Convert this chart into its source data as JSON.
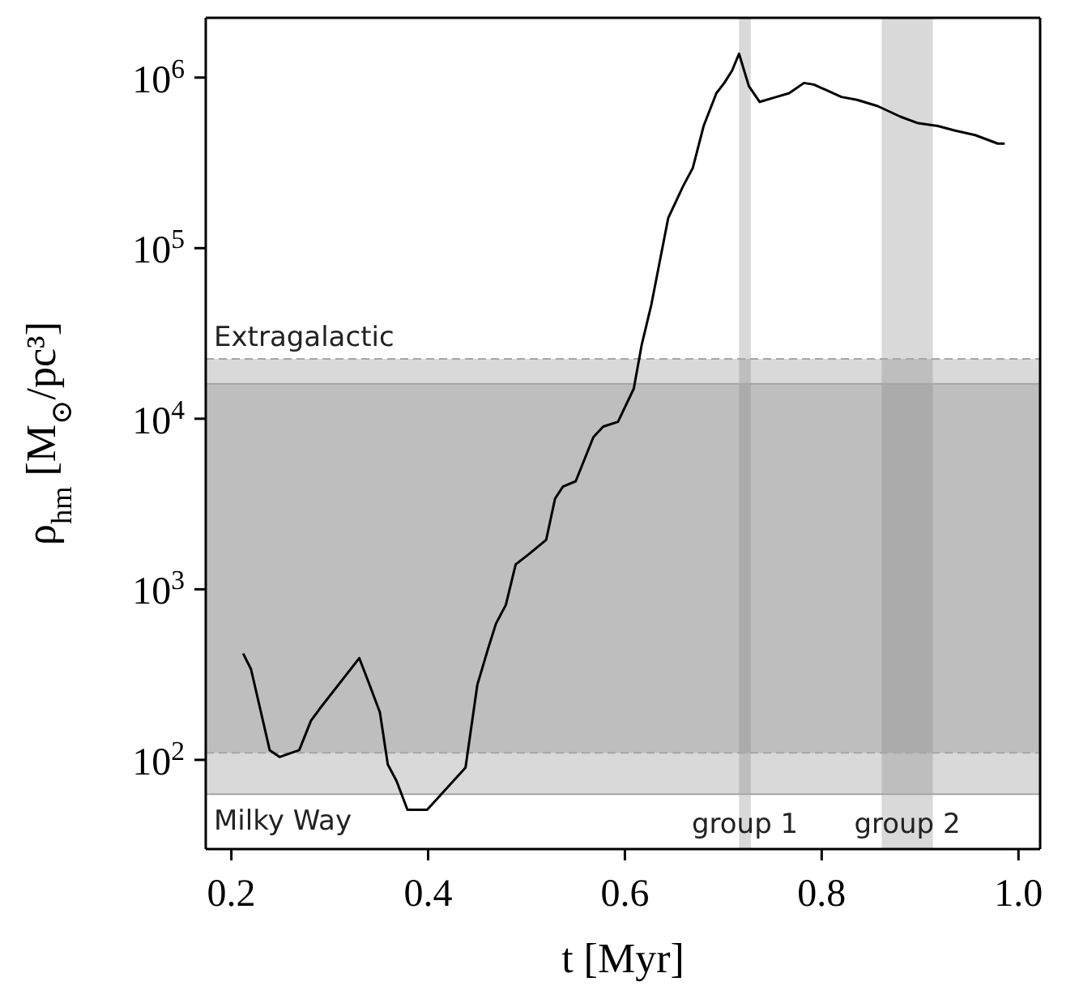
{
  "chart_data": {
    "type": "line",
    "xlabel": "t [Myr]",
    "ylabel": "ρ$_{hm}$ [M$_{⊙}$/pc³]",
    "x": [
      0.212,
      0.22,
      0.239,
      0.249,
      0.269,
      0.281,
      0.29,
      0.33,
      0.34,
      0.351,
      0.359,
      0.368,
      0.379,
      0.399,
      0.438,
      0.45,
      0.461,
      0.469,
      0.479,
      0.489,
      0.502,
      0.52,
      0.529,
      0.537,
      0.55,
      0.568,
      0.578,
      0.593,
      0.609,
      0.617,
      0.627,
      0.644,
      0.659,
      0.669,
      0.68,
      0.693,
      0.701,
      0.709,
      0.716,
      0.726,
      0.737,
      0.754,
      0.767,
      0.782,
      0.792,
      0.82,
      0.836,
      0.857,
      0.88,
      0.898,
      0.918,
      0.935,
      0.956,
      0.979,
      0.986
    ],
    "series": [
      {
        "color": "#000000",
        "values": [
          420,
          340,
          114,
          104,
          114,
          170,
          200,
          395,
          280,
          190,
          94,
          75,
          51,
          51,
          90,
          275,
          450,
          630,
          810,
          1400,
          1600,
          1950,
          3400,
          4000,
          4300,
          7800,
          9000,
          9600,
          15000,
          27000,
          47000,
          150000,
          230000,
          295000,
          520000,
          810000,
          930000,
          1100000,
          1380000,
          890000,
          720000,
          770000,
          810000,
          930000,
          910000,
          770000,
          740000,
          680000,
          590000,
          540000,
          520000,
          490000,
          460000,
          410000,
          410000
        ]
      }
    ],
    "log": "y",
    "marker": "none",
    "line_style": "solid",
    "xlim": [
      0.174,
      1.022
    ],
    "ylim": [
      30,
      2240000
    ],
    "xticks": [
      {
        "value": 0.2,
        "label": "0.2"
      },
      {
        "value": 0.4,
        "label": "0.4"
      },
      {
        "value": 0.6,
        "label": "0.6"
      },
      {
        "value": 0.8,
        "label": "0.8"
      },
      {
        "value": 1.0,
        "label": "1.0"
      }
    ],
    "yticks": [
      {
        "value": 100,
        "label": "10$^{2}$"
      },
      {
        "value": 1000,
        "label": "10$^{3}$"
      },
      {
        "value": 10000,
        "label": "10$^{4}$"
      },
      {
        "value": 100000,
        "label": "10$^{5}$"
      },
      {
        "value": 1000000,
        "label": "10$^{6}$"
      }
    ],
    "bands": [
      {
        "axis": "y",
        "from": 63,
        "to": 16000,
        "label": "Milky Way",
        "color": "#808080"
      },
      {
        "axis": "y",
        "from": 110,
        "to": 22400,
        "label": "Extragalactic",
        "color": "#808080"
      },
      {
        "axis": "x",
        "from": 0.716,
        "to": 0.728,
        "label": "group 1",
        "color": "#808080"
      },
      {
        "axis": "x",
        "from": 0.861,
        "to": 0.913,
        "label": "group 2",
        "color": "#808080"
      }
    ],
    "ref_lines": [
      {
        "axis": "y",
        "value": 63,
        "color": "#a6a6a6",
        "line_style": "solid"
      },
      {
        "axis": "y",
        "value": 16000,
        "color": "#a6a6a6",
        "line_style": "solid"
      },
      {
        "axis": "y",
        "value": 110,
        "color": "#a6a6a6",
        "line_style": "dashed"
      },
      {
        "axis": "y",
        "value": 22400,
        "color": "#a6a6a6",
        "line_style": "dashed"
      }
    ]
  }
}
